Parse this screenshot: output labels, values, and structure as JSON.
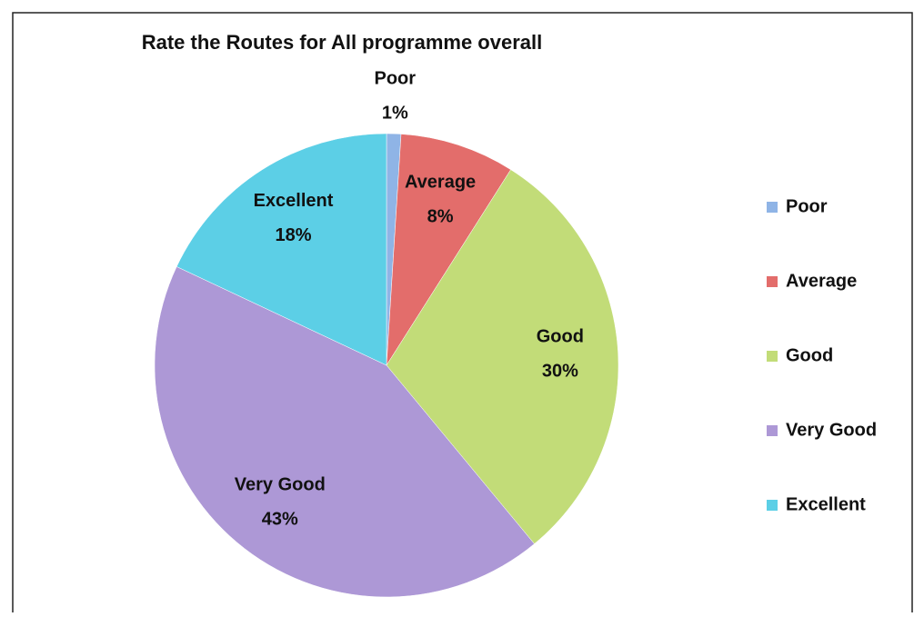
{
  "chart_data": {
    "type": "pie",
    "title": "Rate the Routes for All programme overall",
    "categories": [
      "Poor",
      "Average",
      "Good",
      "Very Good",
      "Excellent"
    ],
    "values": [
      1,
      8,
      30,
      43,
      18
    ],
    "value_labels": [
      "1%",
      "8%",
      "30%",
      "43%",
      "18%"
    ],
    "colors": [
      "#8fb4e6",
      "#e36d6b",
      "#c2dc78",
      "#ad98d6",
      "#5ccfe6"
    ],
    "legend": "right"
  }
}
